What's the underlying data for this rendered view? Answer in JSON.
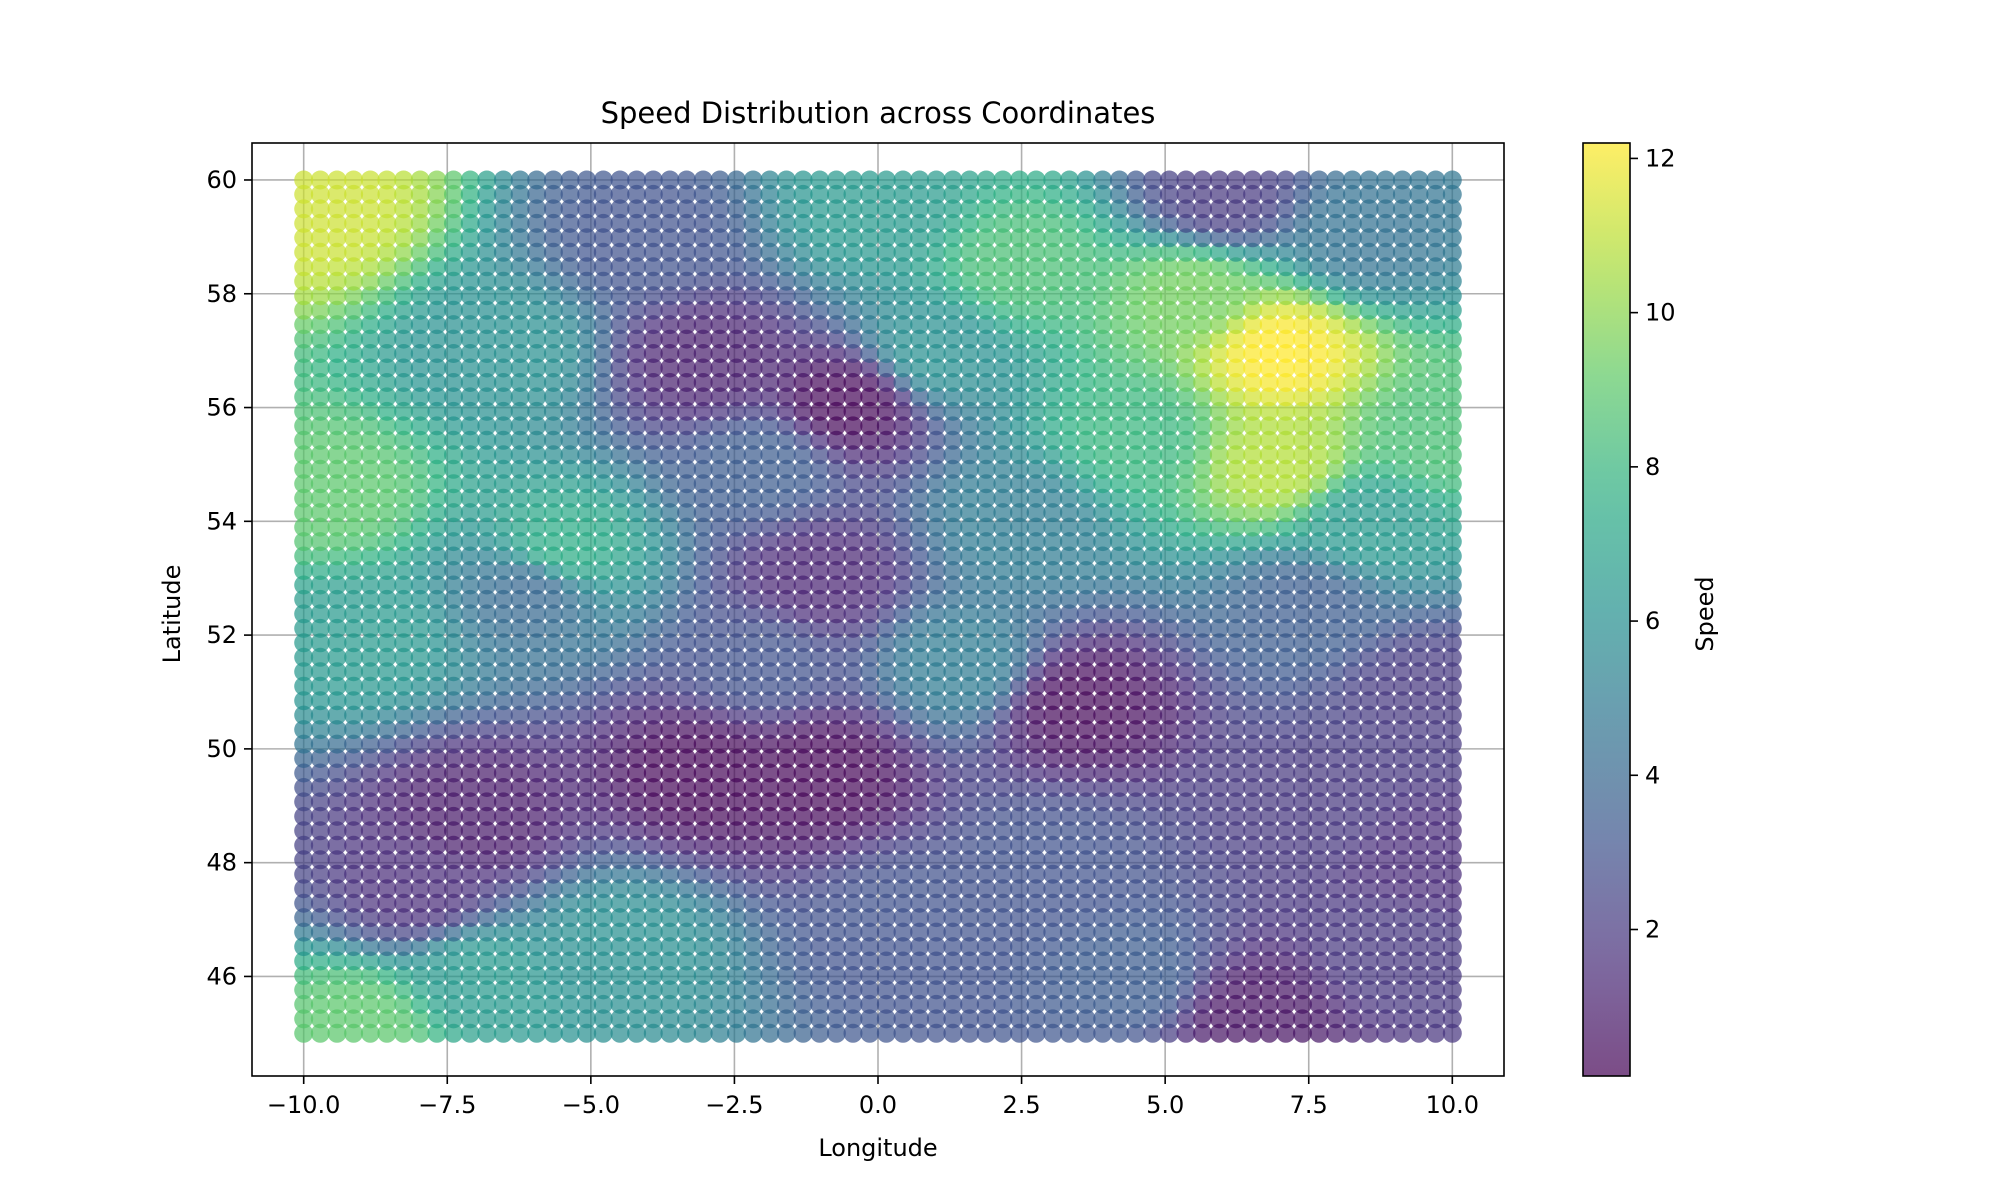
{
  "chart_data": {
    "type": "scatter",
    "title": "Speed Distribution across Coordinates",
    "xlabel": "Longitude",
    "ylabel": "Latitude",
    "xlim": [
      -10.9,
      10.9
    ],
    "ylim": [
      44.25,
      60.65
    ],
    "x_ticks": [
      -10.0,
      -7.5,
      -5.0,
      -2.5,
      0.0,
      2.5,
      5.0,
      7.5,
      10.0
    ],
    "x_tick_labels": [
      "−10.0",
      "−7.5",
      "−5.0",
      "−2.5",
      "0.0",
      "2.5",
      "5.0",
      "7.5",
      "10.0"
    ],
    "y_ticks": [
      46,
      48,
      50,
      52,
      54,
      56,
      58,
      60
    ],
    "y_tick_labels": [
      "46",
      "48",
      "50",
      "52",
      "54",
      "56",
      "58",
      "60"
    ],
    "grid": true,
    "colormap": "viridis",
    "marker_alpha": 0.7,
    "colorbar": {
      "label": "Speed",
      "range": [
        0.1,
        12.2
      ],
      "ticks": [
        2,
        4,
        6,
        8,
        10,
        12
      ],
      "tick_labels": [
        "2",
        "4",
        "6",
        "8",
        "10",
        "12"
      ]
    },
    "grid_x": {
      "start": -10.0,
      "stop": 10.0,
      "count": 70
    },
    "grid_y": {
      "start": 45.0,
      "stop": 60.0,
      "count": 60
    },
    "speed_field_samples": [
      {
        "lon": -9.8,
        "lat": 59.5,
        "speed": 11.3
      },
      {
        "lon": -9.5,
        "lat": 54.5,
        "speed": 9.0
      },
      {
        "lon": -9.0,
        "lat": 52.0,
        "speed": 6.5
      },
      {
        "lon": -9.0,
        "lat": 45.2,
        "speed": 9.0
      },
      {
        "lon": -8.0,
        "lat": 47.5,
        "speed": 1.5
      },
      {
        "lon": -7.0,
        "lat": 48.8,
        "speed": 0.8
      },
      {
        "lon": -7.0,
        "lat": 46.0,
        "speed": 6.5
      },
      {
        "lon": -6.5,
        "lat": 57.0,
        "speed": 6.0
      },
      {
        "lon": -6.0,
        "lat": 52.8,
        "speed": 4.0
      },
      {
        "lon": -5.5,
        "lat": 53.5,
        "speed": 7.5
      },
      {
        "lon": -4.5,
        "lat": 46.5,
        "speed": 6.0
      },
      {
        "lon": -4.0,
        "lat": 59.0,
        "speed": 3.0
      },
      {
        "lon": -3.0,
        "lat": 56.8,
        "speed": 1.0
      },
      {
        "lon": -3.0,
        "lat": 49.6,
        "speed": 0.2
      },
      {
        "lon": -2.0,
        "lat": 55.0,
        "speed": 3.5
      },
      {
        "lon": -2.0,
        "lat": 51.5,
        "speed": 3.0
      },
      {
        "lon": -1.0,
        "lat": 53.0,
        "speed": 1.2
      },
      {
        "lon": -0.5,
        "lat": 56.1,
        "speed": 0.2
      },
      {
        "lon": -1.0,
        "lat": 49.6,
        "speed": 0.2
      },
      {
        "lon": 0.5,
        "lat": 47.0,
        "speed": 3.0
      },
      {
        "lon": 0.0,
        "lat": 59.5,
        "speed": 6.5
      },
      {
        "lon": 1.0,
        "lat": 57.0,
        "speed": 6.0
      },
      {
        "lon": 1.5,
        "lat": 51.5,
        "speed": 5.0
      },
      {
        "lon": 2.5,
        "lat": 58.5,
        "speed": 8.5
      },
      {
        "lon": 2.5,
        "lat": 54.0,
        "speed": 5.0
      },
      {
        "lon": 3.0,
        "lat": 48.0,
        "speed": 3.0
      },
      {
        "lon": 3.5,
        "lat": 50.8,
        "speed": 0.3
      },
      {
        "lon": 4.5,
        "lat": 55.5,
        "speed": 8.0
      },
      {
        "lon": 4.5,
        "lat": 46.0,
        "speed": 3.5
      },
      {
        "lon": 5.5,
        "lat": 58.0,
        "speed": 9.5
      },
      {
        "lon": 6.0,
        "lat": 59.7,
        "speed": 2.0
      },
      {
        "lon": 6.5,
        "lat": 45.3,
        "speed": 0.6
      },
      {
        "lon": 7.0,
        "lat": 57.0,
        "speed": 12.2
      },
      {
        "lon": 7.0,
        "lat": 55.0,
        "speed": 10.8
      },
      {
        "lon": 7.5,
        "lat": 52.5,
        "speed": 3.5
      },
      {
        "lon": 7.5,
        "lat": 49.0,
        "speed": 2.0
      },
      {
        "lon": 8.5,
        "lat": 59.0,
        "speed": 4.5
      },
      {
        "lon": 8.5,
        "lat": 54.0,
        "speed": 6.5
      },
      {
        "lon": 9.0,
        "lat": 46.5,
        "speed": 2.0
      },
      {
        "lon": 9.8,
        "lat": 55.5,
        "speed": 8.5
      },
      {
        "lon": 9.5,
        "lat": 51.0,
        "speed": 2.0
      },
      {
        "lon": 9.5,
        "lat": 48.0,
        "speed": 1.5
      }
    ]
  }
}
